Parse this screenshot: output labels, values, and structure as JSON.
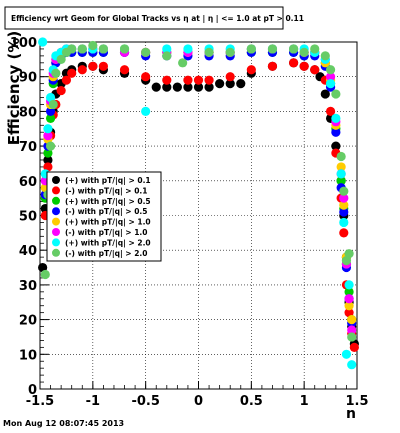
{
  "timestamp": "Mon Aug 12 08:07:45 2013",
  "chart_data": {
    "type": "scatter",
    "title": "Efficiency wrt Geom for Global Tracks vs  η at | η | <= 1.0 at pT > 0.11",
    "xlabel": "η",
    "ylabel": "Efficiency (%)",
    "xlim": [
      -1.5,
      1.5
    ],
    "ylim": [
      0,
      100
    ],
    "x_ticks": [
      "-1.5",
      "-1",
      "-0.5",
      "0",
      "0.5",
      "1",
      "1.5"
    ],
    "y_ticks": [
      "0",
      "10",
      "20",
      "30",
      "40",
      "50",
      "60",
      "70",
      "80",
      "90",
      "100"
    ],
    "grid": true,
    "legend_position": "middle-left",
    "series": [
      {
        "name": "(+) with pT/|q| > 0.1",
        "color": "#000000",
        "x": [
          -1.475,
          -1.45,
          -1.425,
          -1.4,
          -1.375,
          -1.35,
          -1.3,
          -1.25,
          -1.2,
          -1.1,
          -1.0,
          -0.9,
          -0.7,
          -0.5,
          -0.4,
          -0.3,
          -0.2,
          -0.1,
          0.0,
          0.1,
          0.2,
          0.3,
          0.4,
          0.5,
          0.7,
          0.9,
          1.0,
          1.1,
          1.15,
          1.2,
          1.25,
          1.3,
          1.35,
          1.375,
          1.4,
          1.425,
          1.45,
          1.475
        ],
        "y": [
          35,
          52,
          66,
          74,
          80,
          85,
          88,
          91,
          92,
          93,
          93,
          92,
          91,
          89,
          87,
          87,
          87,
          87,
          87,
          87,
          88,
          88,
          88,
          91,
          93,
          94,
          93,
          92,
          90,
          85,
          78,
          70,
          60,
          50,
          38,
          25,
          18,
          13
        ]
      },
      {
        "name": "(-) with pT/|q| > 0.1",
        "color": "#ff0000",
        "x": [
          -1.45,
          -1.425,
          -1.4,
          -1.375,
          -1.35,
          -1.3,
          -1.25,
          -1.2,
          -1.1,
          -1.0,
          -0.9,
          -0.7,
          -0.5,
          -0.3,
          -0.1,
          0.0,
          0.1,
          0.3,
          0.5,
          0.7,
          0.9,
          1.0,
          1.1,
          1.2,
          1.25,
          1.3,
          1.35,
          1.375,
          1.4,
          1.425,
          1.45,
          1.475
        ],
        "y": [
          50,
          64,
          73,
          79,
          82,
          86,
          89,
          91,
          92,
          93,
          93,
          92,
          90,
          89,
          89,
          89,
          89,
          90,
          92,
          93,
          94,
          93,
          92,
          89,
          80,
          68,
          55,
          45,
          30,
          22,
          16,
          12
        ]
      },
      {
        "name": "(+) with pT/|q| > 0.5",
        "color": "#00cc00",
        "x": [
          -1.45,
          -1.425,
          -1.4,
          -1.375,
          -1.35,
          -1.3,
          -1.25,
          -1.2,
          -1.1,
          -1.0,
          -0.9,
          -0.7,
          -0.5,
          -0.3,
          -0.1,
          0.1,
          0.3,
          0.5,
          0.7,
          0.9,
          1.0,
          1.1,
          1.2,
          1.25,
          1.3,
          1.35,
          1.375,
          1.4,
          1.425,
          1.45
        ],
        "y": [
          55,
          68,
          78,
          88,
          94,
          96,
          97,
          97,
          97,
          97,
          97,
          97,
          97,
          97,
          97,
          97,
          97,
          97,
          97,
          97,
          96,
          97,
          94,
          88,
          75,
          60,
          52,
          36,
          28,
          20
        ]
      },
      {
        "name": "(-) with pT/|q| > 0.5",
        "color": "#0000ff",
        "x": [
          -1.45,
          -1.425,
          -1.4,
          -1.375,
          -1.35,
          -1.3,
          -1.25,
          -1.2,
          -1.1,
          -1.0,
          -0.9,
          -0.7,
          -0.5,
          -0.3,
          -0.1,
          0.1,
          0.3,
          0.5,
          0.7,
          0.9,
          1.0,
          1.1,
          1.2,
          1.25,
          1.3,
          1.35,
          1.375,
          1.4,
          1.425,
          1.45
        ],
        "y": [
          56,
          70,
          80,
          89,
          94,
          96,
          97,
          97,
          97,
          97,
          97,
          97,
          96,
          96,
          96,
          96,
          96,
          97,
          97,
          97,
          96,
          96,
          93,
          87,
          74,
          58,
          51,
          35,
          26,
          19
        ]
      },
      {
        "name": "(+) with pT/|q| > 1.0",
        "color": "#ffcc00",
        "x": [
          -1.45,
          -1.425,
          -1.4,
          -1.375,
          -1.35,
          -1.3,
          -1.25,
          -1.2,
          -1.1,
          -1.0,
          -0.9,
          -0.7,
          -0.5,
          -0.3,
          -0.1,
          0.1,
          0.3,
          0.5,
          0.7,
          0.9,
          1.0,
          1.1,
          1.2,
          1.25,
          1.3,
          1.35,
          1.375,
          1.4,
          1.425,
          1.45
        ],
        "y": [
          58,
          72,
          82,
          90,
          95,
          97,
          98,
          98,
          98,
          98,
          98,
          98,
          97,
          97,
          97,
          97,
          97,
          98,
          98,
          98,
          97,
          97,
          94,
          89,
          76,
          64,
          53,
          38,
          24,
          20
        ]
      },
      {
        "name": "(-) with pT/|q| > 1.0",
        "color": "#ff00ff",
        "x": [
          -1.45,
          -1.425,
          -1.4,
          -1.375,
          -1.35,
          -1.3,
          -1.25,
          -1.2,
          -1.1,
          -1.0,
          -0.9,
          -0.7,
          -0.5,
          -0.3,
          -0.1,
          0.1,
          0.3,
          0.5,
          0.7,
          0.9,
          1.0,
          1.1,
          1.2,
          1.25,
          1.3,
          1.35,
          1.375,
          1.4,
          1.425,
          1.45
        ],
        "y": [
          60,
          73,
          83,
          91,
          95,
          97,
          98,
          98,
          98,
          98,
          98,
          97,
          97,
          97,
          97,
          97,
          97,
          98,
          98,
          98,
          97,
          97,
          95,
          90,
          77,
          62,
          55,
          36,
          26,
          17
        ]
      },
      {
        "name": "(+) with pT/|q| > 2.0",
        "color": "#00ffff",
        "x": [
          -1.475,
          -1.45,
          -1.425,
          -1.4,
          -1.375,
          -1.35,
          -1.3,
          -1.25,
          -1.2,
          -1.1,
          -1.0,
          -0.9,
          -0.7,
          -0.5,
          -0.3,
          -0.1,
          0.1,
          0.3,
          0.5,
          0.7,
          0.9,
          1.0,
          1.1,
          1.2,
          1.25,
          1.3,
          1.35,
          1.375,
          1.4,
          1.425,
          1.45
        ],
        "y": [
          100,
          62,
          75,
          84,
          92,
          96,
          97,
          98,
          98,
          98,
          98,
          98,
          98,
          80,
          98,
          98,
          98,
          98,
          98,
          98,
          98,
          98,
          97,
          95,
          88,
          78,
          62,
          48,
          10,
          30,
          7
        ]
      },
      {
        "name": "(-) with pT/|q| > 2.0",
        "color": "#66cc66",
        "x": [
          -1.45,
          -1.425,
          -1.4,
          -1.375,
          -1.35,
          -1.3,
          -1.25,
          -1.2,
          -1.1,
          -1.0,
          -0.9,
          -0.7,
          -0.5,
          -0.3,
          -0.15,
          0.1,
          0.3,
          0.5,
          0.7,
          0.9,
          1.0,
          1.1,
          1.2,
          1.25,
          1.3,
          1.35,
          1.375,
          1.4,
          1.425,
          1.45
        ],
        "y": [
          33,
          56,
          70,
          82,
          91,
          95,
          97,
          98,
          98,
          99,
          98,
          98,
          97,
          96,
          94,
          97,
          97,
          98,
          98,
          98,
          97,
          98,
          96,
          92,
          85,
          67,
          57,
          37,
          39,
          15
        ]
      }
    ]
  }
}
